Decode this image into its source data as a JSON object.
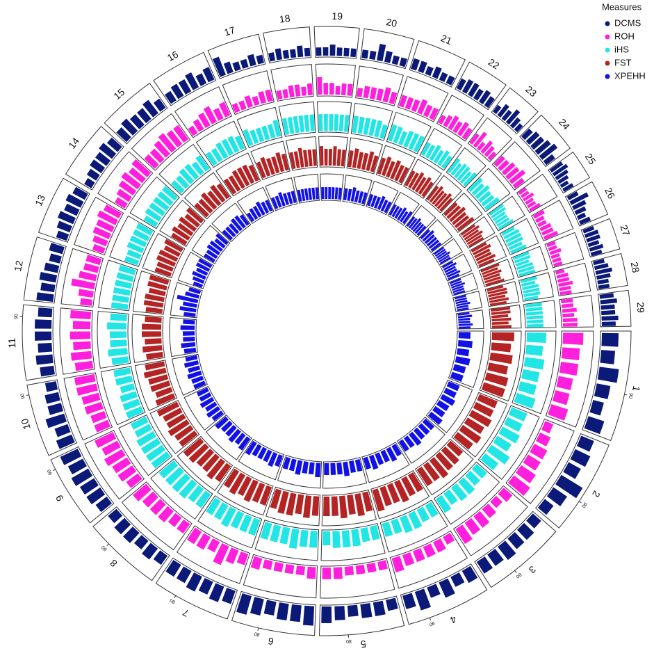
{
  "chart_data": {
    "type": "circos",
    "legend_title": "Measures",
    "legend_position": "top-right",
    "categories": [
      "1",
      "2",
      "3",
      "4",
      "5",
      "6",
      "7",
      "8",
      "9",
      "10",
      "11",
      "12",
      "13",
      "14",
      "15",
      "16",
      "17",
      "18",
      "19",
      "20",
      "21",
      "22",
      "23",
      "24",
      "25",
      "26",
      "27",
      "28",
      "29"
    ],
    "lengths": [
      158,
      137,
      121,
      121,
      121,
      119,
      113,
      113,
      105,
      104,
      107,
      91,
      84,
      84,
      85,
      81,
      75,
      66,
      64,
      72,
      71,
      61,
      52,
      62,
      43,
      51,
      45,
      46,
      51
    ],
    "sector_ticks": [
      {
        "chromosome": "1",
        "value": 90
      },
      {
        "chromosome": "2",
        "value": 90
      },
      {
        "chromosome": "3",
        "value": 80
      },
      {
        "chromosome": "4",
        "value": 90
      },
      {
        "chromosome": "5",
        "value": 80
      },
      {
        "chromosome": "6",
        "value": 80
      },
      {
        "chromosome": "7",
        "value": 80
      },
      {
        "chromosome": "8",
        "value": 80
      },
      {
        "chromosome": "9",
        "value": 90
      },
      {
        "chromosome": "10",
        "value": 90
      },
      {
        "chromosome": "11",
        "value": 90
      }
    ],
    "ylim": [
      0,
      10
    ],
    "series": [
      {
        "name": "DCMS",
        "color": "#0b1a78",
        "values": [
          [
            6,
            5,
            7,
            5,
            4,
            6
          ],
          [
            5,
            6,
            5,
            9,
            6,
            4
          ],
          [
            4,
            5,
            5,
            6,
            5,
            5
          ],
          [
            5,
            4,
            6,
            4,
            7,
            5
          ],
          [
            4,
            5,
            5,
            4,
            5,
            6
          ],
          [
            7,
            6,
            6,
            5,
            6,
            7
          ],
          [
            5,
            6,
            5,
            6,
            5,
            5
          ],
          [
            4,
            5,
            4,
            5,
            5,
            4
          ],
          [
            5,
            6,
            6,
            7,
            6,
            7
          ],
          [
            6,
            5,
            7,
            5,
            5,
            4
          ],
          [
            5,
            6,
            5,
            6,
            6,
            5
          ],
          [
            6,
            5,
            6,
            5,
            4,
            5
          ],
          [
            4,
            5,
            6,
            5,
            6,
            5
          ],
          [
            3,
            4,
            5,
            5,
            6,
            5
          ],
          [
            5,
            6,
            5,
            5,
            6,
            4
          ],
          [
            4,
            5,
            5,
            6,
            4,
            5
          ],
          [
            7,
            4,
            3,
            3,
            4,
            3
          ],
          [
            3,
            4,
            3,
            3,
            4,
            3
          ],
          [
            3,
            3,
            4,
            3,
            3,
            3
          ],
          [
            3,
            3,
            6,
            4,
            3,
            3
          ],
          [
            4,
            4,
            3,
            4,
            3,
            3
          ],
          [
            4,
            5,
            5,
            4,
            5,
            4
          ],
          [
            3,
            5,
            4,
            6,
            4,
            3
          ],
          [
            4,
            5,
            5,
            6,
            7,
            4
          ],
          [
            5,
            6,
            5,
            4,
            3,
            4
          ],
          [
            4,
            7,
            5,
            4,
            3,
            4
          ],
          [
            4,
            5,
            5,
            4,
            5,
            4
          ],
          [
            4,
            5,
            6,
            5,
            4,
            4
          ],
          [
            5,
            6,
            5,
            5,
            6,
            5
          ]
        ]
      },
      {
        "name": "ROH",
        "color": "#ff1fdc",
        "values": [
          [
            7,
            6,
            6,
            5,
            5,
            6
          ],
          [
            3,
            4,
            5,
            5,
            6,
            7
          ],
          [
            4,
            3,
            4,
            5,
            5,
            6
          ],
          [
            3,
            4,
            4,
            4,
            4,
            5
          ],
          [
            3,
            3,
            3,
            3,
            4,
            4
          ],
          [
            4,
            3,
            3,
            3,
            3,
            4
          ],
          [
            4,
            5,
            7,
            4,
            5,
            5
          ],
          [
            4,
            4,
            5,
            5,
            5,
            6
          ],
          [
            5,
            6,
            6,
            7,
            6,
            7
          ],
          [
            5,
            5,
            6,
            6,
            7,
            7
          ],
          [
            6,
            7,
            6,
            7,
            6,
            7
          ],
          [
            4,
            5,
            8,
            6,
            5,
            5
          ],
          [
            4,
            5,
            6,
            6,
            7,
            6
          ],
          [
            4,
            5,
            6,
            7,
            6,
            7
          ],
          [
            5,
            5,
            6,
            7,
            6,
            6
          ],
          [
            3,
            4,
            5,
            6,
            4,
            5
          ],
          [
            3,
            3,
            4,
            3,
            4,
            4
          ],
          [
            3,
            3,
            4,
            4,
            3,
            4
          ],
          [
            6,
            4,
            4,
            3,
            4,
            4
          ],
          [
            3,
            4,
            4,
            4,
            5,
            4
          ],
          [
            4,
            4,
            4,
            5,
            4,
            4
          ],
          [
            3,
            4,
            5,
            4,
            5,
            4
          ],
          [
            4,
            6,
            3,
            5,
            4,
            3
          ],
          [
            4,
            4,
            5,
            5,
            6,
            4
          ],
          [
            3,
            3,
            4,
            3,
            3,
            4
          ],
          [
            4,
            3,
            3,
            4,
            4,
            5
          ],
          [
            3,
            3,
            4,
            3,
            3,
            3
          ],
          [
            3,
            4,
            4,
            5,
            4,
            4
          ],
          [
            4,
            4,
            5,
            4,
            5,
            5
          ]
        ]
      },
      {
        "name": "iHS",
        "color": "#22e6e6",
        "values": [
          [
            7,
            6,
            7,
            6,
            6,
            7
          ],
          [
            6,
            6,
            7,
            6,
            8,
            6
          ],
          [
            5,
            5,
            6,
            6,
            5,
            6
          ],
          [
            5,
            5,
            6,
            6,
            5,
            5
          ],
          [
            5,
            5,
            6,
            6,
            6,
            5
          ],
          [
            6,
            6,
            7,
            6,
            6,
            6
          ],
          [
            6,
            6,
            6,
            7,
            6,
            6
          ],
          [
            6,
            6,
            7,
            7,
            7,
            7
          ],
          [
            7,
            7,
            7,
            7,
            6,
            6
          ],
          [
            6,
            6,
            6,
            5,
            6,
            6
          ],
          [
            6,
            7,
            6,
            6,
            7,
            6
          ],
          [
            6,
            6,
            6,
            6,
            6,
            6
          ],
          [
            5,
            5,
            6,
            6,
            6,
            6
          ],
          [
            5,
            6,
            6,
            6,
            6,
            6
          ],
          [
            5,
            5,
            6,
            6,
            5,
            6
          ],
          [
            5,
            5,
            6,
            6,
            6,
            5
          ],
          [
            6,
            5,
            5,
            5,
            5,
            6
          ],
          [
            6,
            6,
            6,
            6,
            6,
            6
          ],
          [
            6,
            6,
            6,
            6,
            6,
            6
          ],
          [
            6,
            6,
            6,
            6,
            6,
            5
          ],
          [
            6,
            6,
            5,
            6,
            6,
            6
          ],
          [
            5,
            5,
            6,
            5,
            6,
            5
          ],
          [
            6,
            5,
            6,
            6,
            5,
            6
          ],
          [
            6,
            5,
            6,
            5,
            5,
            6
          ],
          [
            6,
            6,
            5,
            5,
            5,
            6
          ],
          [
            5,
            6,
            6,
            6,
            5,
            6
          ],
          [
            6,
            6,
            5,
            6,
            6,
            6
          ],
          [
            6,
            5,
            6,
            6,
            6,
            5
          ],
          [
            6,
            6,
            6,
            6,
            6,
            6
          ]
        ]
      },
      {
        "name": "FST",
        "color": "#b52424",
        "values": [
          [
            8,
            7,
            8,
            7,
            8,
            8
          ],
          [
            7,
            7,
            8,
            7,
            8,
            7
          ],
          [
            6,
            7,
            7,
            8,
            7,
            7
          ],
          [
            7,
            7,
            8,
            7,
            7,
            8
          ],
          [
            7,
            8,
            7,
            8,
            7,
            7
          ],
          [
            7,
            8,
            7,
            8,
            8,
            7
          ],
          [
            7,
            7,
            8,
            7,
            8,
            7
          ],
          [
            7,
            8,
            7,
            7,
            8,
            8
          ],
          [
            7,
            7,
            8,
            7,
            7,
            8
          ],
          [
            7,
            6,
            7,
            7,
            8,
            7
          ],
          [
            6,
            7,
            6,
            7,
            7,
            6
          ],
          [
            6,
            7,
            7,
            6,
            7,
            7
          ],
          [
            6,
            6,
            7,
            7,
            6,
            7
          ],
          [
            6,
            7,
            6,
            7,
            6,
            7
          ],
          [
            6,
            6,
            7,
            6,
            7,
            6
          ],
          [
            6,
            6,
            7,
            7,
            7,
            6
          ],
          [
            6,
            7,
            6,
            6,
            7,
            6
          ],
          [
            6,
            6,
            7,
            6,
            6,
            6
          ],
          [
            7,
            6,
            6,
            7,
            6,
            6
          ],
          [
            6,
            7,
            6,
            6,
            7,
            6
          ],
          [
            6,
            7,
            6,
            7,
            6,
            6
          ],
          [
            6,
            6,
            7,
            6,
            7,
            6
          ],
          [
            6,
            7,
            6,
            6,
            7,
            6
          ],
          [
            6,
            6,
            7,
            6,
            6,
            7
          ],
          [
            6,
            7,
            6,
            7,
            6,
            6
          ],
          [
            6,
            7,
            6,
            6,
            7,
            6
          ],
          [
            7,
            6,
            7,
            6,
            6,
            7
          ],
          [
            6,
            7,
            7,
            6,
            7,
            6
          ],
          [
            7,
            7,
            6,
            7,
            6,
            7
          ]
        ]
      },
      {
        "name": "XPEHH",
        "color": "#1212e6",
        "values": [
          [
            5,
            6,
            5,
            6,
            5,
            5
          ],
          [
            5,
            5,
            6,
            5,
            5,
            6
          ],
          [
            5,
            5,
            5,
            6,
            5,
            5
          ],
          [
            5,
            6,
            5,
            5,
            6,
            5
          ],
          [
            5,
            5,
            6,
            5,
            5,
            5
          ],
          [
            6,
            5,
            5,
            6,
            5,
            5
          ],
          [
            5,
            6,
            5,
            5,
            5,
            6
          ],
          [
            6,
            5,
            6,
            5,
            5,
            6
          ],
          [
            5,
            6,
            5,
            6,
            5,
            5
          ],
          [
            5,
            5,
            6,
            5,
            6,
            5
          ],
          [
            5,
            6,
            5,
            5,
            6,
            5
          ],
          [
            5,
            7,
            6,
            9,
            6,
            5
          ],
          [
            4,
            5,
            6,
            5,
            6,
            6
          ],
          [
            5,
            5,
            6,
            6,
            5,
            6
          ],
          [
            5,
            5,
            5,
            6,
            6,
            5
          ],
          [
            4,
            5,
            5,
            6,
            5,
            5
          ],
          [
            5,
            5,
            6,
            5,
            5,
            5
          ],
          [
            5,
            5,
            5,
            5,
            5,
            5
          ],
          [
            5,
            5,
            5,
            5,
            5,
            5
          ],
          [
            5,
            5,
            6,
            5,
            5,
            5
          ],
          [
            5,
            5,
            5,
            6,
            5,
            5
          ],
          [
            5,
            5,
            5,
            6,
            5,
            6
          ],
          [
            5,
            5,
            6,
            5,
            5,
            5
          ],
          [
            5,
            6,
            5,
            5,
            5,
            5
          ],
          [
            5,
            5,
            5,
            6,
            5,
            5
          ],
          [
            5,
            6,
            5,
            5,
            6,
            5
          ],
          [
            5,
            5,
            6,
            5,
            5,
            5
          ],
          [
            5,
            5,
            5,
            6,
            5,
            5
          ],
          [
            5,
            6,
            5,
            5,
            6,
            5
          ]
        ]
      }
    ]
  }
}
